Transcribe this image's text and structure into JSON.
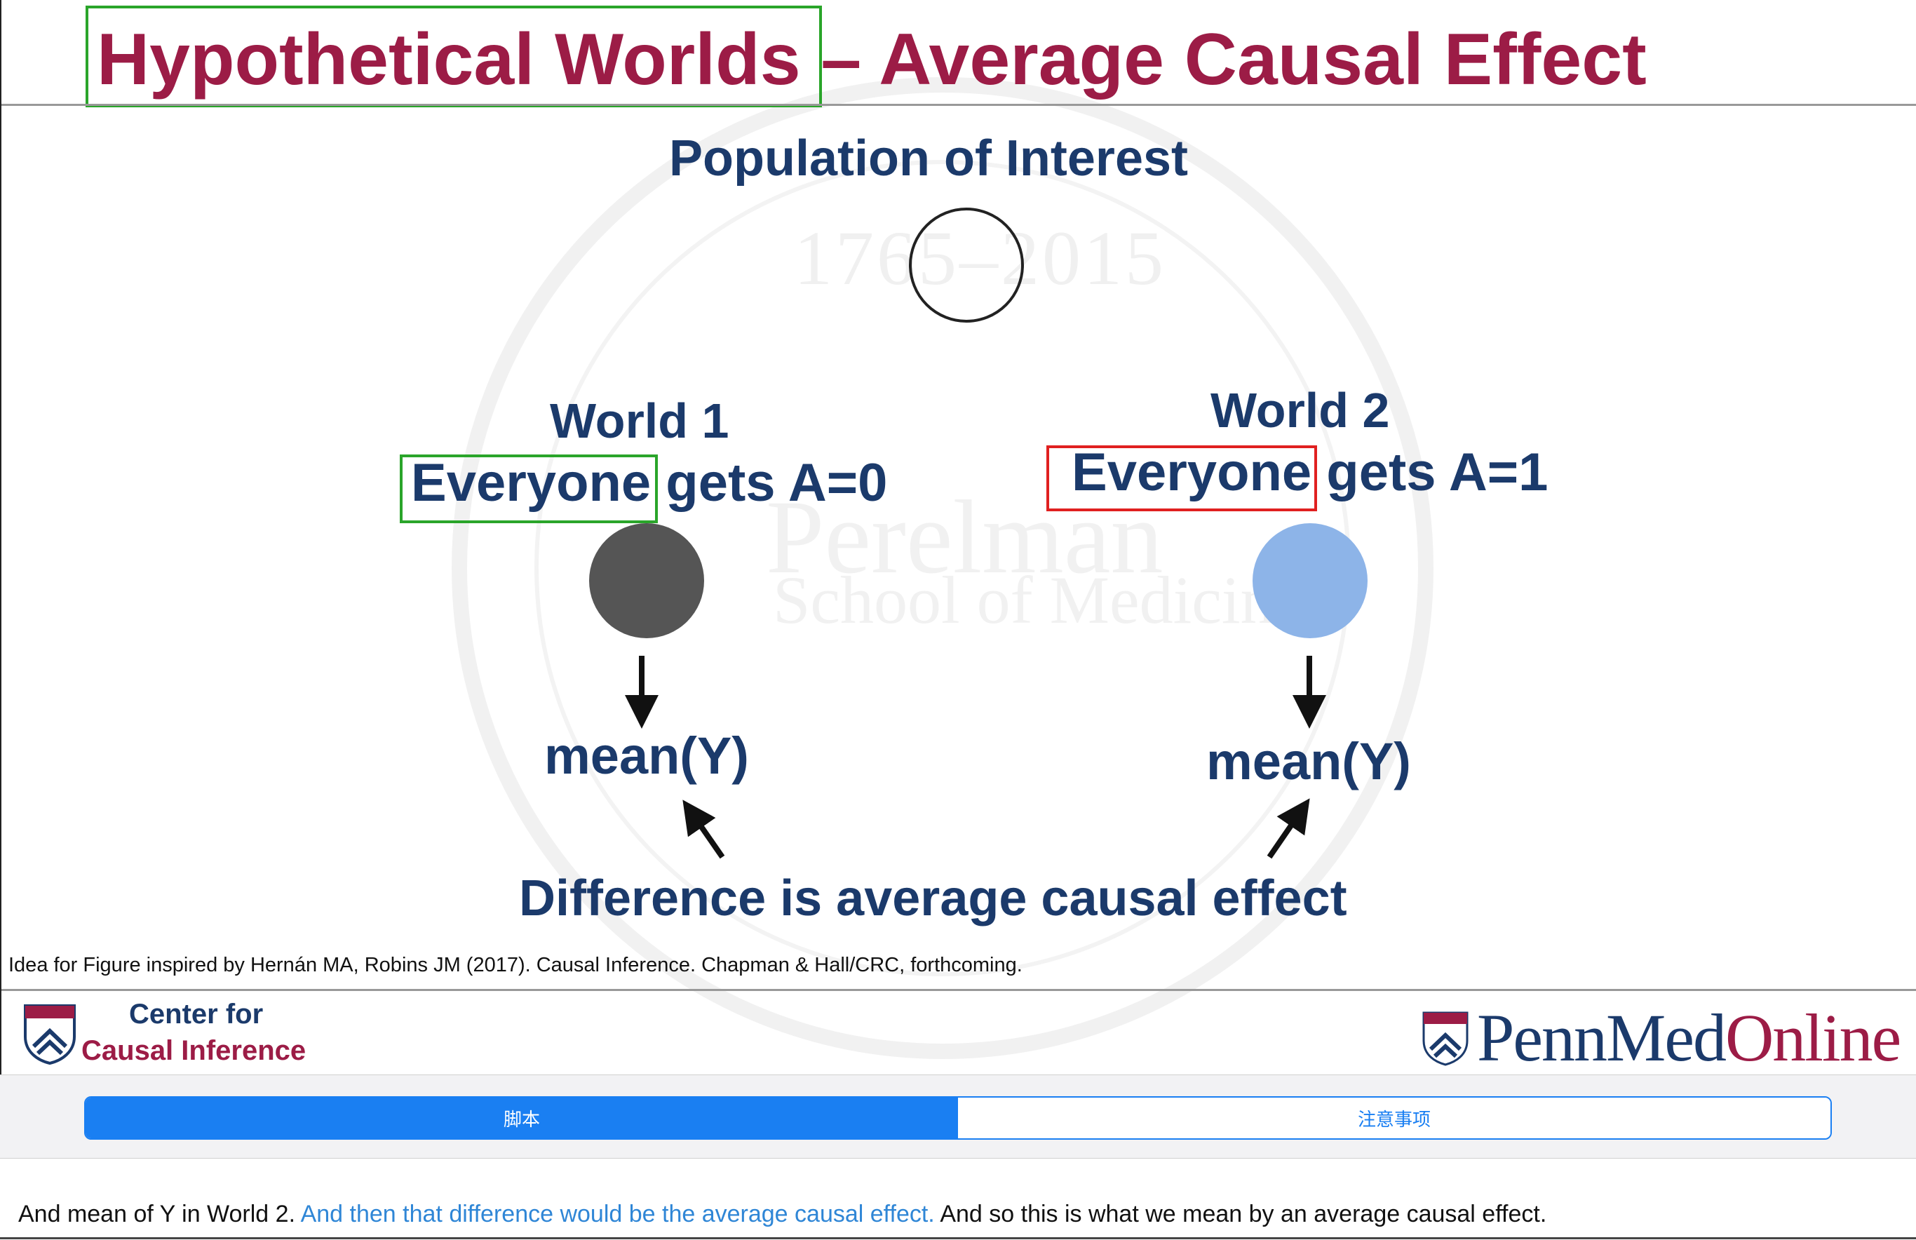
{
  "slide": {
    "title": "Hypothetical Worlds – Average Causal Effect",
    "population_label": "Population of Interest",
    "world1": {
      "title": "World 1",
      "highlight_word": "Everyone",
      "rest": " gets A=0",
      "mean": "mean(Y)",
      "dot_color": "#555555"
    },
    "world2": {
      "title": "World 2",
      "highlight_word": "Everyone",
      "rest": " gets A=1",
      "mean": "mean(Y)",
      "dot_color": "#8db4e8"
    },
    "difference_label": "Difference is average causal effect",
    "citation": "Idea for Figure inspired by Hernán MA, Robins JM (2017). Causal Inference. Chapman  & Hall/CRC, forthcoming.",
    "logo_left": {
      "line1": "Center for",
      "line2": "Causal Inference"
    },
    "logo_right": {
      "part1": "Penn",
      "part2": "Med",
      "part3": "Online"
    },
    "watermark": {
      "years": "1765–2015",
      "name": "Perelman",
      "school": "School of Medicine"
    },
    "colors": {
      "title": "#9c1c46",
      "text": "#1b3a6b",
      "highlight_green": "#2aa52a",
      "highlight_red": "#e02020"
    }
  },
  "tabs": [
    {
      "label": "脚本",
      "active": true
    },
    {
      "label": "注意事项",
      "active": false
    }
  ],
  "transcript": {
    "before": "And mean of Y in World 2. ",
    "highlighted": "And then that difference would be the average causal effect.",
    "after": " And so this is what we mean by an average causal effect."
  }
}
